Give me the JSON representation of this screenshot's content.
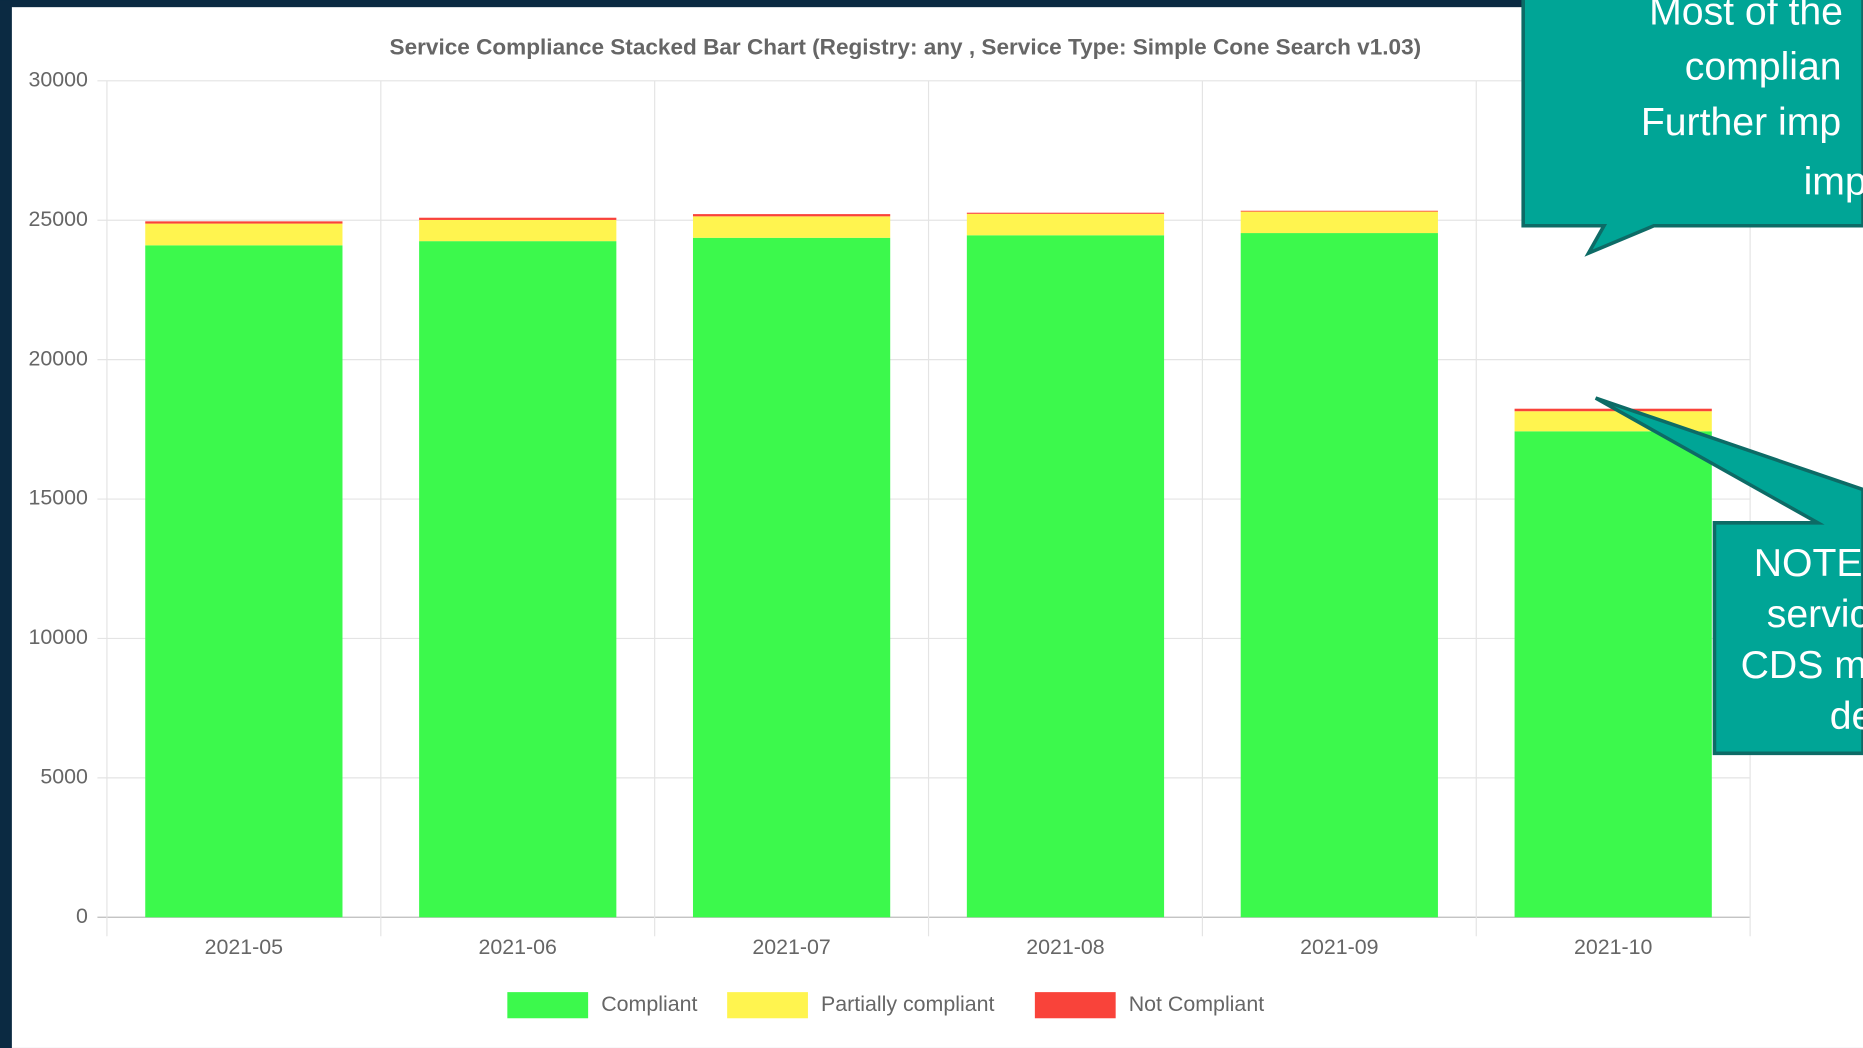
{
  "chart_data": {
    "type": "stacked_bar",
    "title": "Service Compliance Stacked Bar Chart (Registry: any , Service Type: Simple Cone Search v1.03)",
    "categories": [
      "2021-05",
      "2021-06",
      "2021-07",
      "2021-08",
      "2021-09",
      "2021-10"
    ],
    "series": [
      {
        "name": "Compliant",
        "color": "#3cf94c",
        "values": [
          24100,
          24250,
          24370,
          24460,
          24540,
          17430
        ]
      },
      {
        "name": "Partially compliant",
        "color": "#fff44f",
        "values": [
          780,
          760,
          770,
          770,
          770,
          720
        ]
      },
      {
        "name": "Not Compliant",
        "color": "#f9433a",
        "values": [
          80,
          80,
          80,
          40,
          30,
          90
        ]
      }
    ],
    "ylim": [
      0,
      30000
    ],
    "yticks": [
      0,
      5000,
      10000,
      15000,
      20000,
      25000,
      30000
    ],
    "grid": true,
    "legend": "bottom"
  },
  "callouts": [
    {
      "lines": [
        "Most of the",
        "complian",
        "Further imp",
        "imp"
      ]
    },
    {
      "lines": [
        "NOTE",
        "servic",
        "CDS m",
        "de"
      ]
    }
  ]
}
